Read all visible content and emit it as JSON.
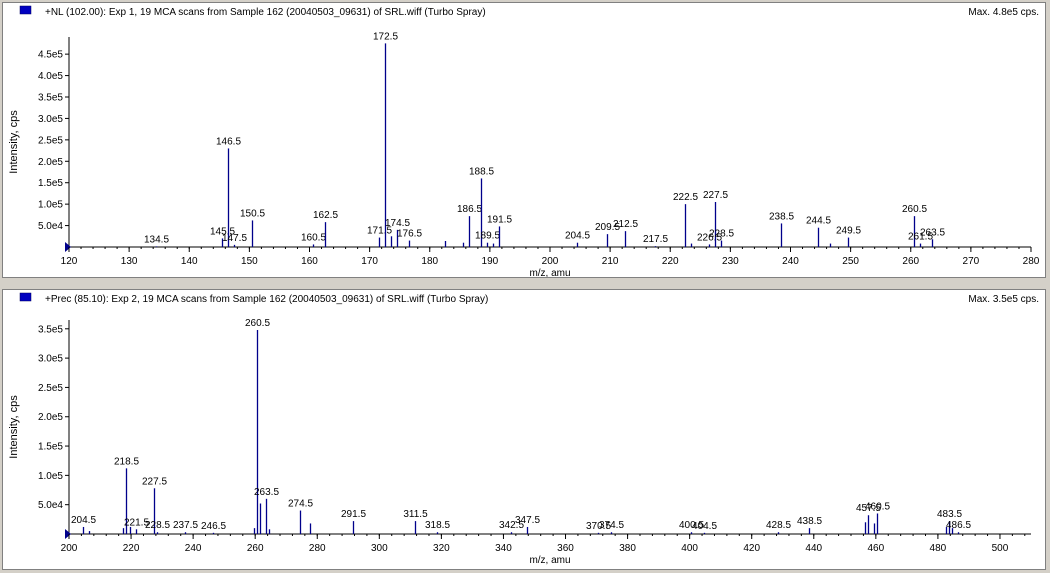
{
  "chart_data": [
    {
      "type": "bar",
      "title": "+NL (102.00): Exp 1, 19 MCA scans from Sample 162 (20040503_09631) of SRL.wiff (Turbo Spray)",
      "max_label": "Max. 4.8e5 cps.",
      "xlabel": "m/z, amu",
      "ylabel": "Intensity, cps",
      "xlim": [
        120,
        280
      ],
      "ylim": [
        0,
        490000
      ],
      "x_ticks": [
        120,
        130,
        140,
        150,
        160,
        170,
        180,
        190,
        200,
        210,
        220,
        230,
        240,
        250,
        260,
        270,
        280
      ],
      "y_ticks": [
        {
          "value": 50000,
          "label": "5.0e4"
        },
        {
          "value": 100000,
          "label": "1.0e5"
        },
        {
          "value": 150000,
          "label": "1.5e5"
        },
        {
          "value": 200000,
          "label": "2.0e5"
        },
        {
          "value": 250000,
          "label": "2.5e5"
        },
        {
          "value": 300000,
          "label": "3.0e5"
        },
        {
          "value": 350000,
          "label": "3.5e5"
        },
        {
          "value": 400000,
          "label": "4.0e5"
        },
        {
          "value": 450000,
          "label": "4.5e5"
        }
      ],
      "peaks": [
        {
          "x": 134.5,
          "y": 1500,
          "label": "134.5"
        },
        {
          "x": 145.5,
          "y": 20000,
          "label": "145.5"
        },
        {
          "x": 146.5,
          "y": 230000,
          "label": "146.5"
        },
        {
          "x": 147.5,
          "y": 5000,
          "label": "147.5"
        },
        {
          "x": 150.5,
          "y": 62000,
          "label": "150.5"
        },
        {
          "x": 160.5,
          "y": 6000,
          "label": "160.5"
        },
        {
          "x": 162.5,
          "y": 58000,
          "label": "162.5"
        },
        {
          "x": 171.5,
          "y": 22000,
          "label": "171.5"
        },
        {
          "x": 172.5,
          "y": 475000,
          "label": "172.5"
        },
        {
          "x": 173.5,
          "y": 25000,
          "label": ""
        },
        {
          "x": 174.5,
          "y": 40000,
          "label": "174.5"
        },
        {
          "x": 176.5,
          "y": 15000,
          "label": "176.5"
        },
        {
          "x": 182.5,
          "y": 14000,
          "label": ""
        },
        {
          "x": 185.5,
          "y": 10000,
          "label": ""
        },
        {
          "x": 186.5,
          "y": 72000,
          "label": "186.5"
        },
        {
          "x": 188.5,
          "y": 160000,
          "label": "188.5"
        },
        {
          "x": 189.5,
          "y": 10000,
          "label": "189.5"
        },
        {
          "x": 190.5,
          "y": 8000,
          "label": ""
        },
        {
          "x": 191.5,
          "y": 48000,
          "label": "191.5"
        },
        {
          "x": 204.5,
          "y": 10000,
          "label": "204.5"
        },
        {
          "x": 209.5,
          "y": 30000,
          "label": "209.5"
        },
        {
          "x": 212.5,
          "y": 37000,
          "label": "212.5"
        },
        {
          "x": 217.5,
          "y": 2000,
          "label": "217.5"
        },
        {
          "x": 222.5,
          "y": 100000,
          "label": "222.5"
        },
        {
          "x": 223.5,
          "y": 8000,
          "label": ""
        },
        {
          "x": 226.5,
          "y": 6000,
          "label": "226.5"
        },
        {
          "x": 227.5,
          "y": 105000,
          "label": "227.5"
        },
        {
          "x": 228.5,
          "y": 15000,
          "label": "228.5"
        },
        {
          "x": 238.5,
          "y": 55000,
          "label": "238.5"
        },
        {
          "x": 244.5,
          "y": 45000,
          "label": "244.5"
        },
        {
          "x": 246.5,
          "y": 8000,
          "label": ""
        },
        {
          "x": 249.5,
          "y": 22000,
          "label": "249.5"
        },
        {
          "x": 260.5,
          "y": 72000,
          "label": "260.5"
        },
        {
          "x": 261.5,
          "y": 8000,
          "label": "261.5"
        },
        {
          "x": 263.5,
          "y": 18000,
          "label": "263.5"
        }
      ]
    },
    {
      "type": "bar",
      "title": "+Prec (85.10): Exp 2, 19 MCA scans from Sample 162 (20040503_09631) of SRL.wiff (Turbo Spray)",
      "max_label": "Max. 3.5e5 cps.",
      "xlabel": "m/z, amu",
      "ylabel": "Intensity, cps",
      "xlim": [
        200,
        510
      ],
      "ylim": [
        0,
        365000
      ],
      "x_ticks": [
        200,
        220,
        240,
        260,
        280,
        300,
        320,
        340,
        360,
        380,
        400,
        420,
        440,
        460,
        480,
        500
      ],
      "y_ticks": [
        {
          "value": 50000,
          "label": "5.0e4"
        },
        {
          "value": 100000,
          "label": "1.0e5"
        },
        {
          "value": 150000,
          "label": "1.5e5"
        },
        {
          "value": 200000,
          "label": "2.0e5"
        },
        {
          "value": 250000,
          "label": "2.5e5"
        },
        {
          "value": 300000,
          "label": "3.0e5"
        },
        {
          "value": 350000,
          "label": "3.5e5"
        }
      ],
      "peaks": [
        {
          "x": 204.5,
          "y": 12000,
          "label": "204.5"
        },
        {
          "x": 206.5,
          "y": 5000,
          "label": ""
        },
        {
          "x": 217.5,
          "y": 10000,
          "label": ""
        },
        {
          "x": 218.5,
          "y": 112000,
          "label": "218.5"
        },
        {
          "x": 219.5,
          "y": 12000,
          "label": ""
        },
        {
          "x": 221.5,
          "y": 8000,
          "label": "221.5"
        },
        {
          "x": 227.5,
          "y": 78000,
          "label": "227.5"
        },
        {
          "x": 228.5,
          "y": 3000,
          "label": "228.5"
        },
        {
          "x": 237.5,
          "y": 3000,
          "label": "237.5"
        },
        {
          "x": 246.5,
          "y": 2000,
          "label": "246.5"
        },
        {
          "x": 259.5,
          "y": 10000,
          "label": ""
        },
        {
          "x": 260.5,
          "y": 348000,
          "label": "260.5"
        },
        {
          "x": 261.5,
          "y": 52000,
          "label": ""
        },
        {
          "x": 263.5,
          "y": 60000,
          "label": "263.5"
        },
        {
          "x": 264.5,
          "y": 8000,
          "label": ""
        },
        {
          "x": 274.5,
          "y": 40000,
          "label": "274.5"
        },
        {
          "x": 277.5,
          "y": 18000,
          "label": ""
        },
        {
          "x": 291.5,
          "y": 22000,
          "label": "291.5"
        },
        {
          "x": 311.5,
          "y": 22000,
          "label": "311.5"
        },
        {
          "x": 318.5,
          "y": 3000,
          "label": "318.5"
        },
        {
          "x": 342.5,
          "y": 3000,
          "label": "342.5"
        },
        {
          "x": 347.5,
          "y": 12000,
          "label": "347.5"
        },
        {
          "x": 370.5,
          "y": 2000,
          "label": "370.5"
        },
        {
          "x": 374.5,
          "y": 3000,
          "label": "374.5"
        },
        {
          "x": 400.5,
          "y": 3000,
          "label": "400.5"
        },
        {
          "x": 404.5,
          "y": 2000,
          "label": "404.5"
        },
        {
          "x": 428.5,
          "y": 3000,
          "label": "428.5"
        },
        {
          "x": 438.5,
          "y": 10000,
          "label": "438.5"
        },
        {
          "x": 456.5,
          "y": 20000,
          "label": ""
        },
        {
          "x": 457.5,
          "y": 32000,
          "label": "457.5"
        },
        {
          "x": 459.5,
          "y": 18000,
          "label": ""
        },
        {
          "x": 460.5,
          "y": 35000,
          "label": "460.5"
        },
        {
          "x": 482.5,
          "y": 12000,
          "label": ""
        },
        {
          "x": 483.5,
          "y": 22000,
          "label": "483.5"
        },
        {
          "x": 484.5,
          "y": 10000,
          "label": ""
        },
        {
          "x": 486.5,
          "y": 3000,
          "label": "486.5"
        }
      ]
    }
  ]
}
